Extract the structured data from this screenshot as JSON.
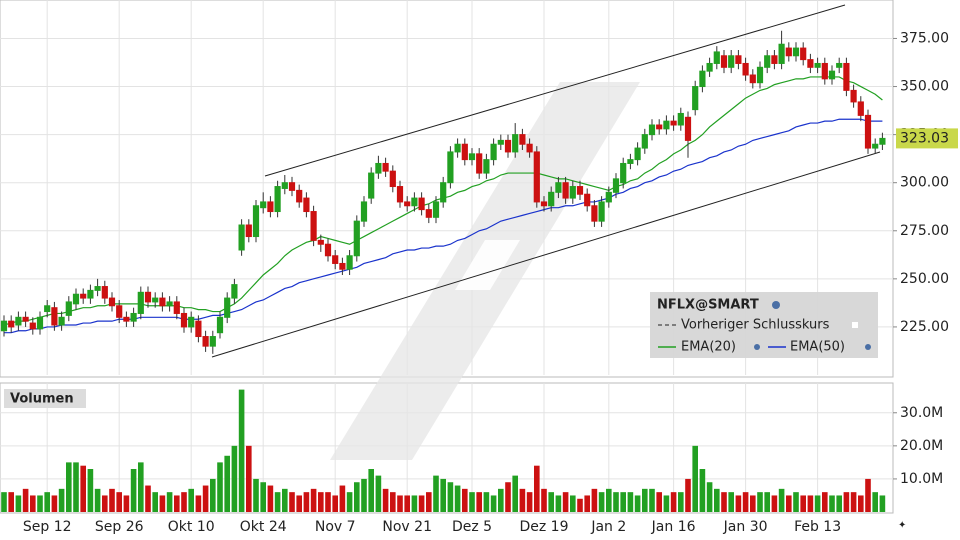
{
  "chart_data": {
    "type": "candlestick",
    "symbol": "NFLX@SMART",
    "previous_close_label": "Vorheriger Schlusskurs",
    "up_color": "#22a022",
    "down_color": "#cc1111",
    "categories": [
      null,
      null,
      null,
      null,
      null,
      null,
      "Sep 12",
      null,
      null,
      null,
      null,
      null,
      null,
      null,
      null,
      null,
      "Sep 26",
      null,
      null,
      null,
      null,
      null,
      null,
      null,
      null,
      null,
      "Okt 10",
      null,
      null,
      null,
      null,
      null,
      null,
      null,
      null,
      null,
      "Okt 24",
      null,
      null,
      null,
      null,
      null,
      null,
      null,
      null,
      null,
      "Nov 7",
      null,
      null,
      null,
      null,
      null,
      null,
      null,
      null,
      null,
      "Nov 21",
      null,
      null,
      null,
      null,
      null,
      null,
      null,
      null,
      "Dez 5",
      null,
      null,
      null,
      null,
      null,
      null,
      null,
      null,
      null,
      "Dez 19",
      null,
      null,
      null,
      null,
      null,
      null,
      null,
      null,
      "Jan 2",
      null,
      null,
      null,
      null,
      null,
      null,
      null,
      null,
      "Jan 16",
      null,
      null,
      null,
      null,
      null,
      null,
      null,
      null,
      null,
      "Jan 30",
      null,
      null,
      null,
      null,
      null,
      null,
      null,
      null,
      null,
      "Feb 13",
      null,
      null,
      null,
      null,
      null,
      null,
      null,
      null,
      null
    ],
    "open": [
      223,
      228,
      226,
      230,
      227,
      224,
      233,
      235,
      226,
      231,
      237,
      242,
      240,
      244,
      246,
      240,
      236,
      230,
      228,
      232,
      243,
      238,
      240,
      236,
      238,
      232,
      225,
      228,
      220,
      215,
      222,
      230,
      240,
      265,
      278,
      272,
      287,
      290,
      285,
      297,
      300,
      296,
      292,
      285,
      270,
      268,
      262,
      258,
      255,
      262,
      280,
      292,
      305,
      310,
      306,
      298,
      290,
      288,
      292,
      286,
      282,
      290,
      300,
      316,
      320,
      312,
      315,
      305,
      312,
      320,
      322,
      316,
      325,
      320,
      316,
      290,
      288,
      295,
      300,
      292,
      298,
      294,
      288,
      280,
      290,
      295,
      300,
      310,
      312,
      318,
      325,
      330,
      328,
      332,
      330,
      334,
      338,
      350,
      358,
      362,
      366,
      360,
      366,
      362,
      356,
      352,
      360,
      366,
      362,
      370,
      366,
      370,
      364,
      360,
      362,
      354,
      360,
      362,
      348,
      342,
      335,
      318,
      320
    ],
    "high": [
      231,
      231,
      233,
      233,
      230,
      233,
      239,
      238,
      233,
      241,
      245,
      245,
      247,
      250,
      249,
      243,
      239,
      233,
      235,
      246,
      246,
      243,
      243,
      241,
      241,
      235,
      233,
      231,
      223,
      223,
      233,
      243,
      250,
      281,
      281,
      291,
      295,
      293,
      301,
      304,
      303,
      299,
      295,
      288,
      273,
      271,
      265,
      261,
      265,
      283,
      293,
      308,
      314,
      313,
      309,
      301,
      293,
      295,
      295,
      289,
      293,
      303,
      319,
      323,
      323,
      318,
      318,
      315,
      323,
      325,
      325,
      331,
      328,
      323,
      319,
      293,
      298,
      303,
      303,
      301,
      301,
      297,
      291,
      293,
      298,
      305,
      313,
      315,
      321,
      328,
      333,
      333,
      335,
      335,
      339,
      337,
      353,
      361,
      365,
      371,
      369,
      369,
      369,
      365,
      359,
      363,
      369,
      369,
      379,
      373,
      373,
      373,
      367,
      365,
      365,
      361,
      365,
      365,
      351,
      345,
      338,
      323,
      326
    ],
    "low": [
      220,
      222,
      223,
      225,
      221,
      221,
      230,
      223,
      223,
      228,
      234,
      237,
      237,
      241,
      237,
      233,
      227,
      225,
      225,
      229,
      235,
      235,
      233,
      233,
      229,
      222,
      222,
      217,
      212,
      211,
      219,
      227,
      237,
      262,
      269,
      269,
      284,
      282,
      282,
      294,
      293,
      287,
      282,
      267,
      264,
      259,
      255,
      252,
      252,
      259,
      277,
      289,
      302,
      303,
      295,
      287,
      285,
      285,
      283,
      279,
      279,
      287,
      297,
      313,
      309,
      309,
      302,
      302,
      309,
      317,
      313,
      313,
      317,
      313,
      287,
      285,
      285,
      292,
      289,
      289,
      291,
      285,
      277,
      277,
      287,
      292,
      297,
      307,
      309,
      315,
      322,
      325,
      325,
      327,
      327,
      313,
      335,
      347,
      355,
      359,
      357,
      357,
      359,
      353,
      349,
      349,
      357,
      359,
      359,
      363,
      363,
      361,
      357,
      357,
      351,
      351,
      357,
      345,
      339,
      332,
      315,
      315,
      317
    ],
    "close": [
      228,
      225,
      230,
      228,
      224,
      230,
      236,
      226,
      230,
      238,
      242,
      240,
      244,
      246,
      240,
      236,
      230,
      228,
      232,
      243,
      238,
      240,
      236,
      238,
      232,
      225,
      230,
      220,
      215,
      220,
      230,
      240,
      247,
      278,
      272,
      288,
      290,
      285,
      298,
      300,
      296,
      290,
      285,
      270,
      268,
      262,
      258,
      255,
      262,
      280,
      290,
      305,
      310,
      306,
      298,
      290,
      288,
      292,
      286,
      282,
      290,
      300,
      316,
      320,
      312,
      315,
      305,
      312,
      320,
      322,
      316,
      325,
      320,
      316,
      290,
      288,
      295,
      300,
      292,
      298,
      294,
      288,
      280,
      290,
      295,
      302,
      310,
      312,
      318,
      325,
      330,
      328,
      332,
      330,
      336,
      322,
      350,
      358,
      362,
      368,
      360,
      366,
      362,
      356,
      352,
      360,
      366,
      362,
      372,
      366,
      370,
      364,
      360,
      362,
      354,
      358,
      362,
      348,
      342,
      335,
      318,
      320,
      323.03
    ],
    "series": [
      {
        "name": "EMA(20)",
        "color": "#22a022",
        "values": [
          226,
          227,
          228,
          228,
          229,
          230,
          231,
          232,
          232,
          233,
          234,
          235,
          235,
          236,
          236,
          237,
          237,
          237,
          237,
          237,
          236,
          236,
          236,
          236,
          236,
          235,
          235,
          234,
          234,
          233,
          233,
          235,
          237,
          240,
          244,
          248,
          252,
          255,
          258,
          262,
          265,
          267,
          269,
          270,
          272,
          271,
          270,
          269,
          268,
          270,
          272,
          274,
          276,
          278,
          280,
          282,
          284,
          286,
          288,
          289,
          291,
          292,
          293,
          295,
          296,
          298,
          299,
          301,
          302,
          304,
          305,
          305,
          305,
          305,
          305,
          304,
          303,
          302,
          302,
          301,
          300,
          299,
          298,
          297,
          296,
          298,
          299,
          301,
          302,
          305,
          307,
          310,
          312,
          315,
          317,
          320,
          322,
          325,
          329,
          332,
          335,
          338,
          341,
          344,
          346,
          348,
          349,
          351,
          352,
          353,
          354,
          354,
          355,
          355,
          355,
          355,
          355,
          353,
          352,
          350,
          348,
          346,
          343
        ]
      },
      {
        "name": "EMA(50)",
        "color": "#1a33cc",
        "values": [
          222,
          222,
          223,
          223,
          224,
          224,
          225,
          225,
          226,
          226,
          226,
          227,
          227,
          228,
          228,
          228,
          229,
          229,
          229,
          230,
          230,
          230,
          230,
          230,
          230,
          229,
          229,
          229,
          230,
          231,
          231,
          232,
          233,
          234,
          236,
          238,
          239,
          241,
          243,
          245,
          246,
          248,
          249,
          250,
          251,
          252,
          253,
          254,
          255,
          256,
          258,
          259,
          260,
          261,
          263,
          264,
          265,
          265,
          266,
          266,
          267,
          267,
          268,
          270,
          271,
          273,
          275,
          276,
          278,
          280,
          281,
          282,
          283,
          284,
          285,
          286,
          287,
          287,
          288,
          288,
          289,
          290,
          290,
          291,
          292,
          294,
          295,
          297,
          298,
          300,
          301,
          303,
          304,
          306,
          307,
          309,
          310,
          311,
          313,
          314,
          316,
          317,
          319,
          320,
          322,
          323,
          324,
          325,
          326,
          327,
          329,
          330,
          331,
          331,
          332,
          332,
          333,
          333,
          333,
          333,
          332,
          332,
          332
        ]
      }
    ],
    "ylim": [
      200,
      395
    ],
    "yticks": [
      {
        "value": 225,
        "label": "225.00"
      },
      {
        "value": 250,
        "label": "250.00"
      },
      {
        "value": 275,
        "label": "275.00"
      },
      {
        "value": 300,
        "label": "300.00"
      },
      {
        "value": 325,
        "label": "325.00"
      },
      {
        "value": 350,
        "label": "350.00"
      },
      {
        "value": 375,
        "label": "375.00"
      }
    ],
    "grid": true,
    "volume": [
      6,
      6,
      5,
      7,
      5,
      5,
      6,
      5,
      7,
      15,
      15,
      14,
      13,
      7,
      5,
      7,
      6,
      5,
      13,
      15,
      8,
      6,
      5,
      6,
      5,
      6,
      7,
      5,
      8,
      10,
      15,
      17,
      20,
      37,
      20,
      10,
      9,
      8,
      6,
      7,
      6,
      5,
      6,
      7,
      6,
      6,
      5,
      8,
      6,
      9,
      10,
      13,
      11,
      7,
      6,
      5,
      5,
      5,
      5,
      6,
      11,
      10,
      9,
      8,
      7,
      6,
      6,
      6,
      5,
      7,
      9,
      11,
      7,
      6,
      14,
      7,
      6,
      5,
      6,
      5,
      4,
      5,
      7,
      6,
      7,
      6,
      6,
      6,
      5,
      7,
      7,
      6,
      5,
      6,
      6,
      10,
      20,
      13,
      9,
      7,
      6,
      6,
      5,
      6,
      5,
      6,
      6,
      5,
      7,
      5,
      6,
      5,
      5,
      5,
      6,
      5,
      5,
      6,
      6,
      5,
      10,
      6,
      5
    ],
    "volume_title": "Volumen",
    "volume_ylim": [
      0,
      39
    ],
    "volume_yticks": [
      {
        "value": 10,
        "label": "10.0M"
      },
      {
        "value": 20,
        "label": "20.0M"
      },
      {
        "value": 30,
        "label": "30.0M"
      }
    ]
  }
}
